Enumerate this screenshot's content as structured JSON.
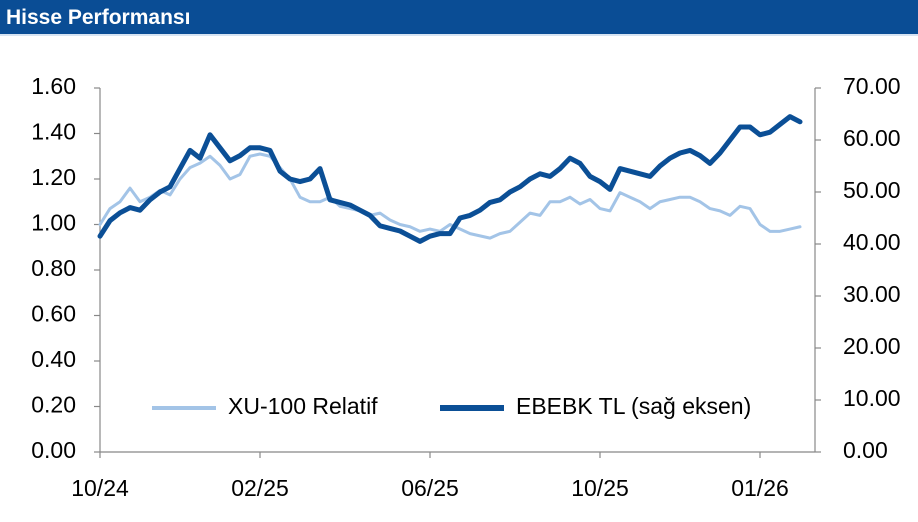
{
  "header": {
    "title": "Hisse Performansı"
  },
  "chart_data": {
    "type": "line",
    "categories": [
      "10/24",
      null,
      null,
      null,
      null,
      null,
      null,
      null,
      null,
      null,
      null,
      null,
      null,
      null,
      null,
      null,
      "02/25",
      null,
      null,
      null,
      null,
      null,
      null,
      null,
      null,
      null,
      null,
      null,
      null,
      null,
      null,
      null,
      null,
      "06/25",
      null,
      null,
      null,
      null,
      null,
      null,
      null,
      null,
      null,
      null,
      null,
      null,
      null,
      null,
      null,
      null,
      "10/25",
      null,
      null,
      null,
      null,
      null,
      null,
      null,
      null,
      null,
      null,
      null,
      null,
      null,
      null,
      null,
      "01/26",
      null,
      null,
      null,
      null
    ],
    "series": [
      {
        "name": "XU-100 Relatif",
        "color": "#a3c4e7",
        "axis": "y",
        "values": [
          1.0,
          1.07,
          1.1,
          1.16,
          1.1,
          1.12,
          1.15,
          1.13,
          1.2,
          1.25,
          1.27,
          1.3,
          1.26,
          1.2,
          1.22,
          1.3,
          1.31,
          1.3,
          1.25,
          1.2,
          1.12,
          1.1,
          1.1,
          1.12,
          1.08,
          1.07,
          1.06,
          1.04,
          1.05,
          1.02,
          1.0,
          0.99,
          0.97,
          0.98,
          0.97,
          1.0,
          0.98,
          0.96,
          0.95,
          0.94,
          0.96,
          0.97,
          1.01,
          1.05,
          1.04,
          1.1,
          1.1,
          1.12,
          1.09,
          1.11,
          1.07,
          1.06,
          1.14,
          1.12,
          1.1,
          1.07,
          1.1,
          1.11,
          1.12,
          1.12,
          1.1,
          1.07,
          1.06,
          1.04,
          1.08,
          1.07,
          1.0,
          0.97,
          0.97,
          0.98,
          0.99
        ]
      },
      {
        "name": "EBEBK TL (sağ eksen)",
        "color": "#0b4f96",
        "axis": "y2",
        "values": [
          41.5,
          44.5,
          46.0,
          47.0,
          46.5,
          48.5,
          50.0,
          51.0,
          54.5,
          58.0,
          56.5,
          61.0,
          58.5,
          56.0,
          57.0,
          58.5,
          58.5,
          58.0,
          54.0,
          52.5,
          52.0,
          52.5,
          54.5,
          48.5,
          48.0,
          47.5,
          46.5,
          45.5,
          43.5,
          43.0,
          42.5,
          41.5,
          40.5,
          41.5,
          42.0,
          42.0,
          45.0,
          45.5,
          46.5,
          48.0,
          48.5,
          50.0,
          51.0,
          52.5,
          53.5,
          53.0,
          54.5,
          56.5,
          55.5,
          53.0,
          52.0,
          50.5,
          54.5,
          54.0,
          53.5,
          53.0,
          55.0,
          56.5,
          57.5,
          58.0,
          57.0,
          55.5,
          57.5,
          60.0,
          62.5,
          62.5,
          61.0,
          61.5,
          63.0,
          64.5,
          63.5
        ]
      }
    ],
    "ylim": [
      0,
      1.6
    ],
    "yticks": [
      {
        "value": 0,
        "label": "0.00"
      },
      {
        "value": 0.2,
        "label": "0.20"
      },
      {
        "value": 0.4,
        "label": "0.40"
      },
      {
        "value": 0.6,
        "label": "0.60"
      },
      {
        "value": 0.8,
        "label": "0.80"
      },
      {
        "value": 1,
        "label": "1.00"
      },
      {
        "value": 1.2,
        "label": "1.20"
      },
      {
        "value": 1.4,
        "label": "1.40"
      },
      {
        "value": 1.6,
        "label": "1.60"
      }
    ],
    "y2lim": [
      0,
      70
    ],
    "y2ticks": [
      {
        "value": 0,
        "label": "0.00"
      },
      {
        "value": 10,
        "label": "10.00"
      },
      {
        "value": 20,
        "label": "20.00"
      },
      {
        "value": 30,
        "label": "30.00"
      },
      {
        "value": 40,
        "label": "40.00"
      },
      {
        "value": 50,
        "label": "50.00"
      },
      {
        "value": 60,
        "label": "60.00"
      },
      {
        "value": 70,
        "label": "70.00"
      }
    ],
    "grid": false,
    "legend": "bottom"
  }
}
